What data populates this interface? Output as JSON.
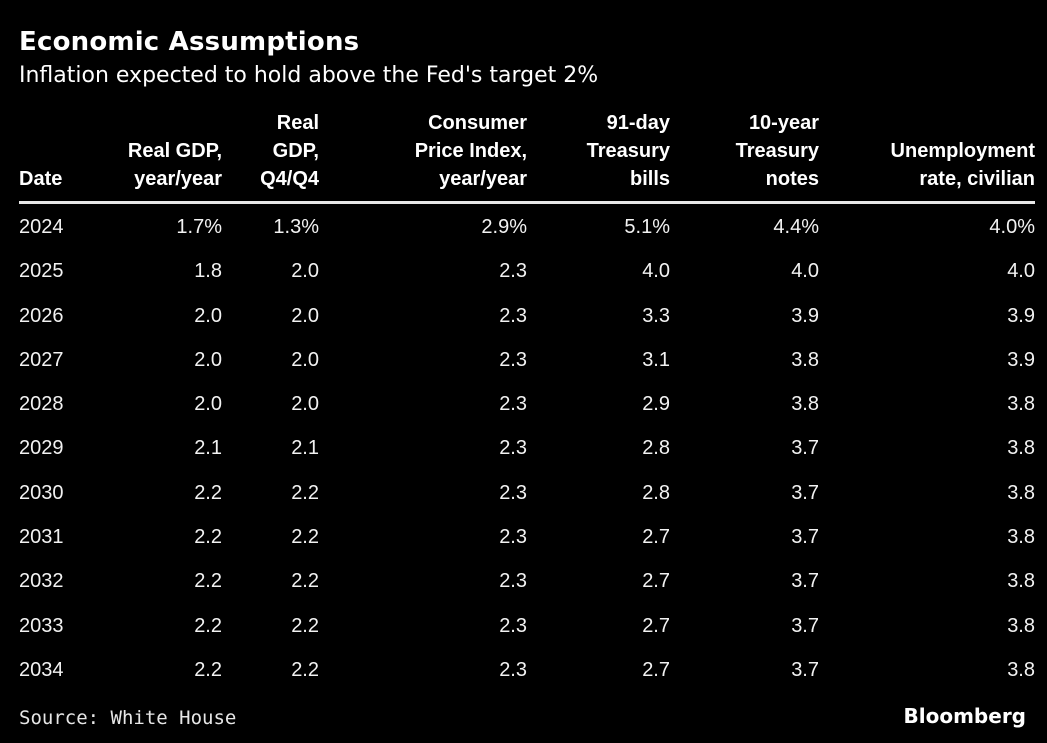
{
  "chart_data": {
    "type": "table",
    "title": "Economic Assumptions",
    "subtitle": "Inflation expected to hold above the Fed's target 2%",
    "columns": [
      "Date",
      "Real GDP,\nyear/year",
      "Real\nGDP,\nQ4/Q4",
      "Consumer\nPrice Index,\nyear/year",
      "91-day\nTreasury\nbills",
      "10-year\nTreasury\nnotes",
      "Unemployment\nrate, civilian"
    ],
    "rows": [
      [
        "2024",
        "1.7%",
        "1.3%",
        "2.9%",
        "5.1%",
        "4.4%",
        "4.0%"
      ],
      [
        "2025",
        "1.8",
        "2.0",
        "2.3",
        "4.0",
        "4.0",
        "4.0"
      ],
      [
        "2026",
        "2.0",
        "2.0",
        "2.3",
        "3.3",
        "3.9",
        "3.9"
      ],
      [
        "2027",
        "2.0",
        "2.0",
        "2.3",
        "3.1",
        "3.8",
        "3.9"
      ],
      [
        "2028",
        "2.0",
        "2.0",
        "2.3",
        "2.9",
        "3.8",
        "3.8"
      ],
      [
        "2029",
        "2.1",
        "2.1",
        "2.3",
        "2.8",
        "3.7",
        "3.8"
      ],
      [
        "2030",
        "2.2",
        "2.2",
        "2.3",
        "2.8",
        "3.7",
        "3.8"
      ],
      [
        "2031",
        "2.2",
        "2.2",
        "2.3",
        "2.7",
        "3.7",
        "3.8"
      ],
      [
        "2032",
        "2.2",
        "2.2",
        "2.3",
        "2.7",
        "3.7",
        "3.8"
      ],
      [
        "2033",
        "2.2",
        "2.2",
        "2.3",
        "2.7",
        "3.7",
        "3.8"
      ],
      [
        "2034",
        "2.2",
        "2.2",
        "2.3",
        "2.7",
        "3.7",
        "3.8"
      ]
    ],
    "source": "Source: White House",
    "brand": "Bloomberg"
  }
}
